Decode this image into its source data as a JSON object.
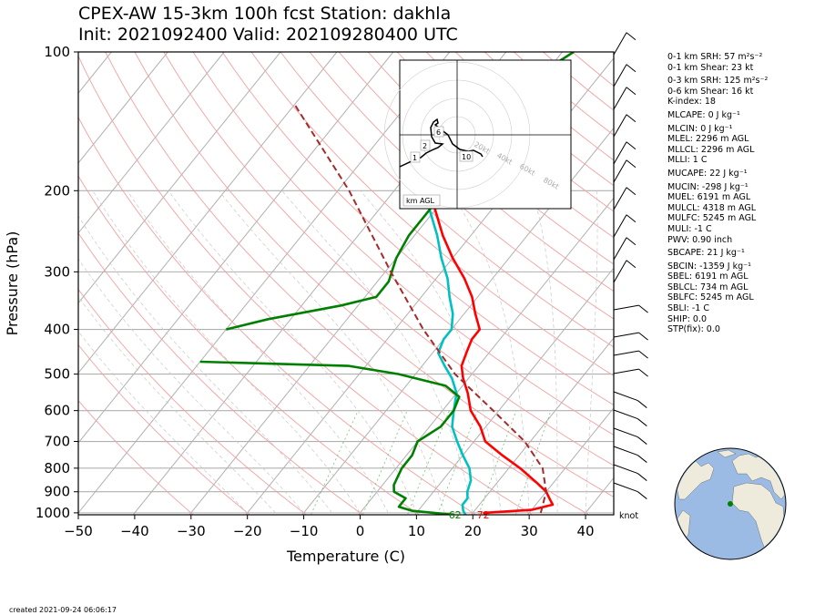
{
  "title": {
    "line1": "CPEX-AW 15-3km  100h fcst  Station: dakhla",
    "line2": "Init: 2021092400  Valid: 202109280400 UTC"
  },
  "chart_data": {
    "type": "line",
    "subtype": "skew-t log-p sounding",
    "xlabel": "Temperature (C)",
    "ylabel": "Pressure (hPa)",
    "xlim": [
      -50,
      45
    ],
    "ylim": [
      1050,
      100
    ],
    "y_scale": "log",
    "x_ticks": [
      -50,
      -40,
      -30,
      -20,
      -10,
      0,
      10,
      20,
      30,
      40
    ],
    "y_ticks": [
      100,
      200,
      300,
      400,
      500,
      600,
      700,
      800,
      900,
      1000
    ],
    "grid": true,
    "series": [
      {
        "color": "#ff0000",
        "points": [
          [
            1010,
            23
          ],
          [
            1000,
            22
          ],
          [
            985,
            30
          ],
          [
            960,
            33
          ],
          [
            940,
            32
          ],
          [
            900,
            30
          ],
          [
            860,
            27
          ],
          [
            800,
            22
          ],
          [
            750,
            17
          ],
          [
            700,
            12
          ],
          [
            650,
            9
          ],
          [
            600,
            5
          ],
          [
            550,
            2
          ],
          [
            510,
            -1
          ],
          [
            480,
            -3
          ],
          [
            450,
            -4
          ],
          [
            420,
            -5
          ],
          [
            400,
            -5
          ],
          [
            370,
            -8
          ],
          [
            340,
            -11
          ],
          [
            310,
            -15
          ],
          [
            280,
            -20
          ],
          [
            250,
            -25
          ],
          [
            220,
            -30
          ],
          [
            200,
            -33
          ],
          [
            170,
            -38
          ],
          [
            150,
            -42
          ],
          [
            130,
            -46
          ],
          [
            115,
            -50
          ]
        ]
      },
      {
        "color": "#00c0c0",
        "points": [
          [
            1010,
            19
          ],
          [
            990,
            18
          ],
          [
            960,
            17
          ],
          [
            930,
            17
          ],
          [
            900,
            16
          ],
          [
            850,
            15
          ],
          [
            800,
            13
          ],
          [
            750,
            10
          ],
          [
            700,
            7
          ],
          [
            650,
            4
          ],
          [
            600,
            2
          ],
          [
            550,
            0
          ],
          [
            510,
            -3
          ],
          [
            480,
            -6
          ],
          [
            450,
            -9
          ],
          [
            420,
            -10
          ],
          [
            400,
            -10
          ],
          [
            370,
            -12
          ],
          [
            340,
            -15
          ],
          [
            310,
            -18
          ],
          [
            280,
            -22
          ],
          [
            250,
            -26
          ],
          [
            220,
            -31
          ],
          [
            200,
            -34
          ],
          [
            170,
            -40
          ],
          [
            150,
            -44
          ],
          [
            130,
            -48
          ],
          [
            115,
            -51
          ]
        ]
      },
      {
        "color": "#008000",
        "points": [
          [
            1010,
            17
          ],
          [
            990,
            9
          ],
          [
            970,
            6
          ],
          [
            950,
            6
          ],
          [
            930,
            6
          ],
          [
            900,
            3
          ],
          [
            870,
            2
          ],
          [
            800,
            1
          ],
          [
            750,
            1
          ],
          [
            700,
            0
          ],
          [
            650,
            2
          ],
          [
            600,
            2
          ],
          [
            560,
            1
          ],
          [
            530,
            -3
          ],
          [
            500,
            -13
          ],
          [
            480,
            -23
          ],
          [
            470,
            -50
          ]
        ]
      },
      {
        "color": "#008000",
        "points": [
          [
            400,
            -50
          ],
          [
            380,
            -44
          ],
          [
            355,
            -33
          ],
          [
            340,
            -28
          ],
          [
            315,
            -28
          ],
          [
            280,
            -30
          ],
          [
            250,
            -31
          ],
          [
            220,
            -31
          ],
          [
            190,
            -32
          ],
          [
            160,
            -33
          ],
          [
            140,
            -35
          ],
          [
            125,
            -34
          ],
          [
            100,
            -28
          ]
        ]
      },
      {
        "color": "#a52a2a",
        "dashed": true,
        "points": [
          [
            1050,
            33
          ],
          [
            900,
            30
          ],
          [
            800,
            26
          ],
          [
            700,
            19
          ],
          [
            600,
            9
          ],
          [
            500,
            -3
          ],
          [
            400,
            -15
          ],
          [
            300,
            -29
          ],
          [
            200,
            -48
          ],
          [
            130,
            -70
          ]
        ]
      }
    ],
    "annotations": [
      {
        "text": "62",
        "color": "#008000",
        "x_value": 17,
        "pressure": 1050
      },
      {
        "text": "72",
        "color": "#ff0000",
        "x_value": 22,
        "pressure": 1050
      }
    ],
    "wind_unit": "knot",
    "hodograph": {
      "ring_labels": [
        "20kt",
        "40kt",
        "60kt",
        "80kt"
      ],
      "height_labels": [
        "1",
        "2",
        "6",
        "10"
      ],
      "unit_label": "km AGL"
    }
  },
  "stats": [
    "0-1 km SRH: 57 m²s⁻²",
    "0-1 km Shear: 23 kt",
    "0-3 km SRH: 125 m²s⁻²",
    "0-6 km Shear: 16 kt",
    "K-index: 18",
    "MLCAPE: 0 J kg⁻¹",
    "MLCIN: 0 J kg⁻¹",
    "MLEL: 2296 m AGL",
    "MLLCL: 2296 m AGL",
    "MLLI: 1 C",
    "MUCAPE: 22 J kg⁻¹",
    "MUCIN: -298 J kg⁻¹",
    "MUEL: 6191 m AGL",
    "MULCL: 4318 m AGL",
    "MULFC: 5245 m AGL",
    "MULI: -1 C",
    "PWV: 0.90 inch",
    "SBCAPE: 21 J kg⁻¹",
    "SBCIN: -1359 J kg⁻¹",
    "SBEL: 6191 m AGL",
    "SBLCL: 734 m AGL",
    "SBLFC: 5245 m AGL",
    "SBLI: -1 C",
    "SHIP: 0.0",
    "STP(fix): 0.0"
  ],
  "footer": {
    "created": "created 2021-09-24 06:06:17"
  },
  "colors": {
    "land": "#efebdc",
    "ocean": "#9bbbe5",
    "station": "#008000"
  }
}
